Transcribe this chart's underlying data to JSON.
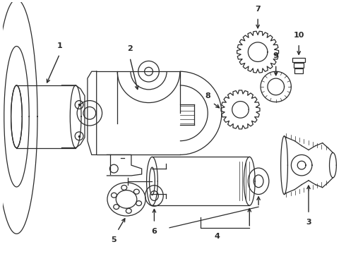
{
  "background": "#ffffff",
  "line_color": "#2a2a2a",
  "figsize": [
    4.9,
    3.6
  ],
  "dpi": 100
}
